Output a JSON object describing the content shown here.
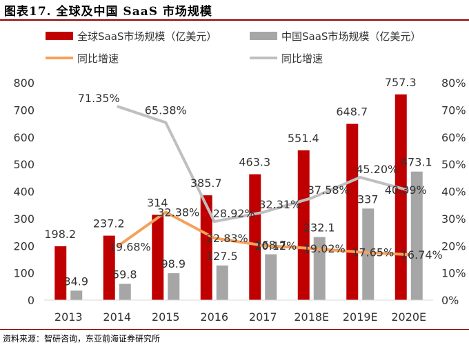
{
  "figure_label": "图表17.  全球及中国 SaaS 市场规模",
  "source": "资料来源：智研咨询，东亚前海证券研究所",
  "colors": {
    "global_bar": "#c00000",
    "china_bar": "#a6a6a6",
    "global_growth": "#f4a15d",
    "china_growth": "#bfbfbf",
    "title_rule": "#8c0000"
  },
  "chart_data": {
    "type": "bar",
    "title": "全球及中国 SaaS 市场规模",
    "categories": [
      "2013",
      "2014",
      "2015",
      "2016",
      "2017",
      "2018E",
      "2019E",
      "2020E"
    ],
    "series": [
      {
        "name": "全球SaaS市场规模（亿美元）",
        "kind": "bar",
        "axis": "left",
        "values": [
          198.2,
          237.2,
          314,
          385.7,
          463.3,
          551.4,
          648.7,
          757.3
        ],
        "labels": [
          "198.2",
          "237.2",
          "314",
          "385.7",
          "463.3",
          "551.4",
          "648.7",
          "757.3"
        ]
      },
      {
        "name": "中国SaaS市场规模（亿美元）",
        "kind": "bar",
        "axis": "left",
        "values": [
          34.9,
          59.8,
          98.9,
          127.5,
          168.7,
          232.1,
          337,
          473.1
        ],
        "labels": [
          "34.9",
          "59.8",
          "98.9",
          "127.5",
          "168.7",
          "232.1",
          "337",
          "473.1"
        ]
      },
      {
        "name": "同比增速",
        "kind": "line",
        "axis": "right",
        "color_key": "global_growth",
        "values": [
          null,
          19.68,
          32.38,
          22.83,
          20.12,
          19.02,
          17.65,
          16.74
        ],
        "labels": [
          null,
          "19.68%",
          "32.38%",
          "22.83%",
          "20.12%",
          "19.02%",
          "17.65%",
          "16.74%"
        ]
      },
      {
        "name": "同比增速",
        "kind": "line",
        "axis": "right",
        "color_key": "china_growth",
        "values": [
          null,
          71.35,
          65.38,
          28.92,
          32.31,
          37.58,
          45.2,
          40.39
        ],
        "labels": [
          null,
          "71.35%",
          "65.38%",
          "28.92%",
          "32.31%",
          "37.58%",
          "45.20%",
          "40.39%"
        ]
      }
    ],
    "ylim": [
      0,
      800
    ],
    "yticks": [
      "0",
      "100",
      "200",
      "300",
      "400",
      "500",
      "600",
      "700",
      "800"
    ],
    "y2lim": [
      0,
      80
    ],
    "y2ticks": [
      "0%",
      "10%",
      "20%",
      "30%",
      "40%",
      "50%",
      "60%",
      "70%",
      "80%"
    ],
    "legend_position": "top",
    "grid": false
  }
}
